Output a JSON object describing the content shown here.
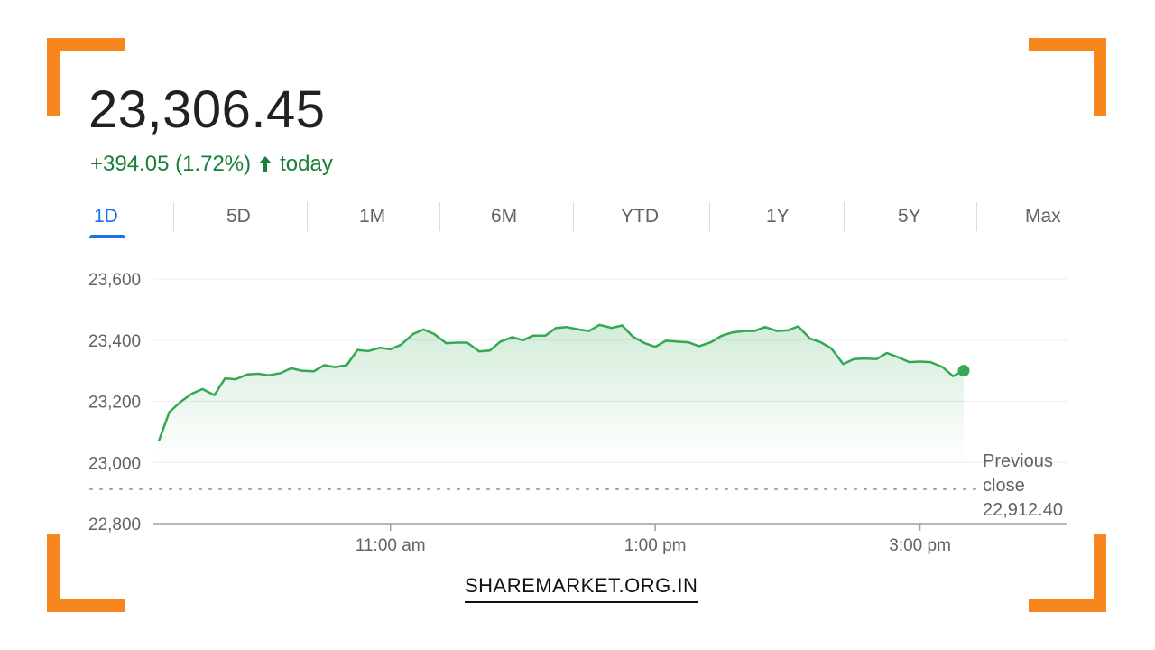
{
  "header": {
    "price": "23,306.45",
    "change": "+394.05 (1.72%)",
    "change_suffix": "today",
    "change_color": "#188038"
  },
  "tabs": [
    "1D",
    "5D",
    "1M",
    "6M",
    "YTD",
    "1Y",
    "5Y",
    "Max"
  ],
  "active_tab": "1D",
  "previous_close": {
    "line1": "Previous",
    "line2": "close",
    "value": "22,912.40"
  },
  "brand": "SHAREMARKET.ORG.IN",
  "colors": {
    "accent": "#1a73e8",
    "line": "#34a853",
    "frame": "#f7861e"
  },
  "icons": {
    "trend": "arrow-up-icon"
  },
  "chart_data": {
    "type": "area",
    "y_ticks": [
      "23,600",
      "23,400",
      "23,200",
      "23,000",
      "22,800"
    ],
    "ylim": [
      22800,
      23600
    ],
    "x_ticks": [
      "11:00 am",
      "1:00 pm",
      "3:00 pm"
    ],
    "x_tick_hours": [
      11.0,
      13.0,
      15.0
    ],
    "xlim_hours": [
      9.25,
      15.5
    ],
    "grid": true,
    "previous_close": 22912.4,
    "series": [
      {
        "x_hours": [
          9.25,
          9.33,
          9.42,
          9.5,
          9.58,
          9.67,
          9.75,
          9.83,
          9.92,
          10.0,
          10.08,
          10.17,
          10.25,
          10.33,
          10.42,
          10.5,
          10.58,
          10.67,
          10.75,
          10.83,
          10.92,
          11.0,
          11.08,
          11.17,
          11.25,
          11.33,
          11.42,
          11.5,
          11.58,
          11.67,
          11.75,
          11.83,
          11.92,
          12.0,
          12.08,
          12.17,
          12.25,
          12.33,
          12.42,
          12.5,
          12.58,
          12.67,
          12.75,
          12.83,
          12.92,
          13.0,
          13.08,
          13.17,
          13.25,
          13.33,
          13.42,
          13.5,
          13.58,
          13.67,
          13.75,
          13.83,
          13.92,
          14.0,
          14.08,
          14.17,
          14.25,
          14.33,
          14.42,
          14.5,
          14.58,
          14.67,
          14.75,
          14.83,
          14.92,
          15.0,
          15.08,
          15.17,
          15.25,
          15.33
        ],
        "values": [
          23070,
          23165,
          23200,
          23225,
          23240,
          23220,
          23275,
          23272,
          23288,
          23290,
          23285,
          23292,
          23308,
          23300,
          23298,
          23318,
          23312,
          23318,
          23368,
          23364,
          23375,
          23370,
          23385,
          23420,
          23435,
          23420,
          23390,
          23392,
          23392,
          23363,
          23366,
          23395,
          23410,
          23400,
          23415,
          23415,
          23440,
          23443,
          23435,
          23430,
          23450,
          23440,
          23448,
          23412,
          23390,
          23378,
          23398,
          23395,
          23393,
          23380,
          23393,
          23414,
          23425,
          23430,
          23430,
          23443,
          23430,
          23432,
          23445,
          23405,
          23393,
          23373,
          23322,
          23338,
          23340,
          23338,
          23358,
          23345,
          23328,
          23330,
          23328,
          23312,
          23282,
          23300
        ]
      }
    ]
  }
}
